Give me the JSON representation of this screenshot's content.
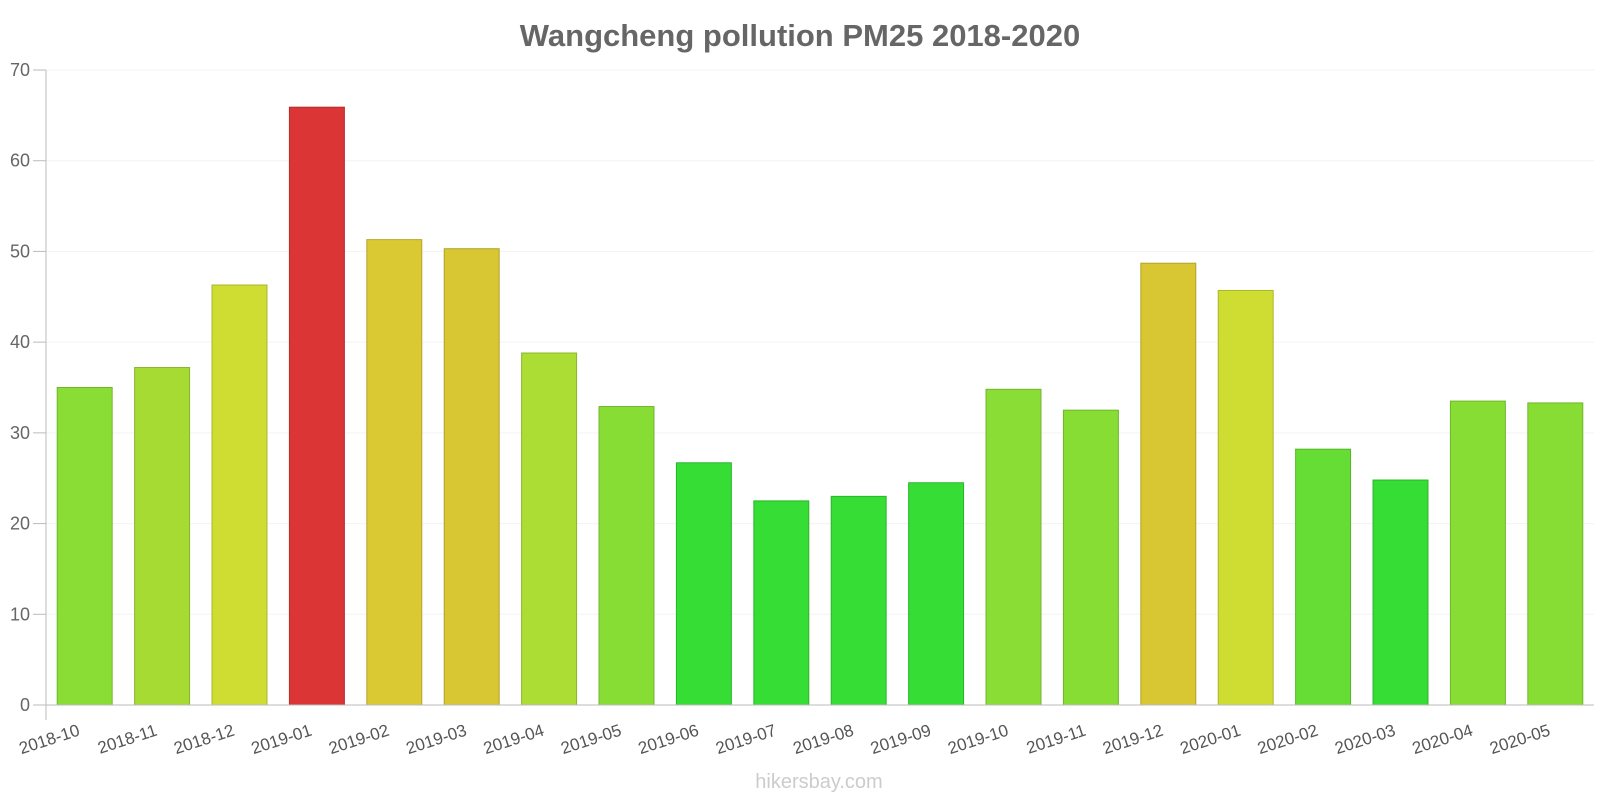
{
  "chart_data": {
    "type": "bar",
    "title": "Wangcheng pollution PM25 2018-2020",
    "xlabel": "",
    "ylabel": "",
    "ylim": [
      0,
      70
    ],
    "yticks": [
      0,
      10,
      20,
      30,
      40,
      50,
      60,
      70
    ],
    "categories": [
      "2018-10",
      "2018-11",
      "2018-12",
      "2019-01",
      "2019-02",
      "2019-03",
      "2019-04",
      "2019-05",
      "2019-06",
      "2019-07",
      "2019-08",
      "2019-09",
      "2019-10",
      "2019-11",
      "2019-12",
      "2020-01",
      "2020-02",
      "2020-03",
      "2020-04",
      "2020-05"
    ],
    "values": [
      35,
      37.2,
      46.3,
      65.9,
      51.3,
      50.3,
      38.8,
      32.9,
      26.7,
      22.5,
      23,
      24.5,
      34.8,
      32.5,
      48.7,
      45.7,
      28.2,
      24.8,
      33.5,
      33.3
    ],
    "colors": [
      "#8add35",
      "#a6db33",
      "#cfdd33",
      "#db3535",
      "#dbc933",
      "#d9c633",
      "#acdd35",
      "#88dd35",
      "#35dd35",
      "#35dd35",
      "#35dd35",
      "#35dd35",
      "#8add35",
      "#88dd35",
      "#d9c633",
      "#cfdd33",
      "#66dd35",
      "#35dd35",
      "#88dd35",
      "#88dd35"
    ],
    "grid": true,
    "legend": "none"
  },
  "watermark": "hikersbay.com"
}
